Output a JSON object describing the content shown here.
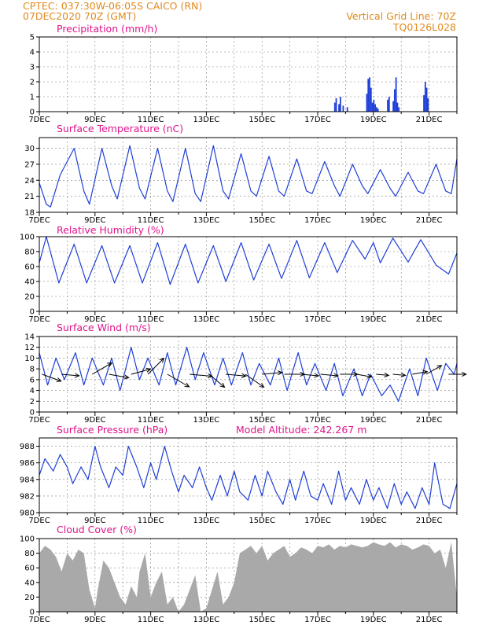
{
  "header": {
    "line1": "CPTEC:   037:30W-06:05S   CAICO (RN)",
    "line2": "07DEC2020 70Z (GMT)",
    "vertical_grid": "Vertical Grid Line: 70Z",
    "code": "TQ0126L028"
  },
  "colors": {
    "header": "#e08a1e",
    "panel_title": "#e0148c",
    "series": "#1f3fd6",
    "cloud": "#a9a9a9",
    "grid": "#808080"
  },
  "chart_data": [
    {
      "type": "bar",
      "title": "Precipitation (mm/h)",
      "ylim": [
        0,
        5
      ],
      "yticks": [
        0,
        1,
        2,
        3,
        4,
        5
      ],
      "xlim": [
        7,
        22
      ],
      "xtick_labels": [
        "7DEC",
        "9DEC",
        "11DEC",
        "13DEC",
        "15DEC",
        "17DEC",
        "19DEC",
        "21DEC"
      ],
      "grid": "dashed",
      "x": [
        17.6,
        17.65,
        17.75,
        17.8,
        17.9,
        18.05,
        18.75,
        18.8,
        18.85,
        18.9,
        18.95,
        19.0,
        19.05,
        19.1,
        19.15,
        19.5,
        19.55,
        19.7,
        19.75,
        19.8,
        19.85,
        19.9,
        20.8,
        20.85,
        20.9,
        20.95
      ],
      "values": [
        0.6,
        0.9,
        0.5,
        1.0,
        0.4,
        0.3,
        1.2,
        2.2,
        2.3,
        1.6,
        0.6,
        0.8,
        0.5,
        0.3,
        0.2,
        0.8,
        1.0,
        0.7,
        1.5,
        2.3,
        0.6,
        0.3,
        1.1,
        2.0,
        1.6,
        0.9
      ]
    },
    {
      "type": "line",
      "title": "Surface Temperature (nC)",
      "ylim": [
        18,
        32
      ],
      "yticks": [
        18,
        21,
        24,
        27,
        30
      ],
      "xlim": [
        7,
        22
      ],
      "xtick_labels": [
        "7DEC",
        "9DEC",
        "11DEC",
        "13DEC",
        "15DEC",
        "17DEC",
        "19DEC",
        "21DEC"
      ],
      "grid": "dashed",
      "series": [
        {
          "x": [
            7.0,
            7.25,
            7.4,
            7.75,
            8.25,
            8.6,
            8.8,
            9.25,
            9.6,
            9.8,
            10.25,
            10.6,
            10.8,
            11.25,
            11.6,
            11.8,
            12.25,
            12.6,
            12.8,
            13.25,
            13.6,
            13.8,
            14.25,
            14.6,
            14.8,
            15.25,
            15.6,
            15.8,
            16.25,
            16.6,
            16.8,
            17.25,
            17.6,
            17.8,
            18.25,
            18.6,
            18.8,
            19.25,
            19.6,
            19.8,
            20.25,
            20.6,
            20.8,
            21.25,
            21.6,
            21.8,
            22.0
          ],
          "values": [
            23.5,
            19.5,
            19.0,
            25.0,
            30.0,
            22.0,
            19.5,
            30.0,
            23.0,
            20.5,
            30.5,
            22.5,
            20.5,
            30.0,
            22.0,
            20.0,
            30.0,
            21.5,
            20.0,
            30.5,
            22.0,
            20.5,
            29.0,
            22.0,
            21.0,
            28.5,
            22.0,
            21.0,
            28.0,
            22.0,
            21.5,
            27.5,
            23.0,
            21.0,
            27.0,
            23.0,
            21.5,
            26.0,
            22.5,
            21.0,
            25.5,
            22.0,
            21.5,
            27.0,
            22.0,
            21.5,
            28.0
          ]
        }
      ]
    },
    {
      "type": "line",
      "title": "Relative Humidity (%)",
      "ylim": [
        0,
        100
      ],
      "yticks": [
        0,
        20,
        40,
        60,
        80,
        100
      ],
      "xlim": [
        7,
        22
      ],
      "xtick_labels": [
        "7DEC",
        "9DEC",
        "11DEC",
        "13DEC",
        "15DEC",
        "17DEC",
        "19DEC",
        "21DEC"
      ],
      "grid": "dashed",
      "series": [
        {
          "x": [
            7.0,
            7.25,
            7.7,
            8.25,
            8.7,
            9.25,
            9.7,
            10.25,
            10.7,
            11.25,
            11.7,
            12.25,
            12.7,
            13.25,
            13.7,
            14.25,
            14.7,
            15.25,
            15.7,
            16.25,
            16.7,
            17.25,
            17.7,
            18.25,
            18.7,
            19.0,
            19.25,
            19.7,
            20.25,
            20.7,
            21.25,
            21.7,
            22.0
          ],
          "values": [
            65,
            100,
            38,
            90,
            38,
            88,
            38,
            88,
            38,
            92,
            36,
            90,
            38,
            88,
            40,
            92,
            42,
            90,
            44,
            95,
            45,
            92,
            52,
            95,
            70,
            92,
            65,
            98,
            66,
            96,
            62,
            50,
            78
          ]
        }
      ]
    },
    {
      "type": "line",
      "title": "Surface Wind (m/s)",
      "ylim": [
        0,
        14
      ],
      "yticks": [
        0,
        2,
        4,
        6,
        8,
        10,
        12,
        14
      ],
      "xlim": [
        7,
        22
      ],
      "xtick_labels": [
        "7DEC",
        "9DEC",
        "11DEC",
        "13DEC",
        "15DEC",
        "17DEC",
        "19DEC",
        "21DEC"
      ],
      "grid": "dashed",
      "series": [
        {
          "x": [
            7.0,
            7.3,
            7.6,
            7.9,
            8.3,
            8.6,
            8.9,
            9.3,
            9.6,
            9.9,
            10.3,
            10.6,
            10.9,
            11.3,
            11.6,
            11.9,
            12.3,
            12.6,
            12.9,
            13.3,
            13.6,
            13.9,
            14.3,
            14.6,
            14.9,
            15.3,
            15.6,
            15.9,
            16.3,
            16.6,
            16.9,
            17.3,
            17.6,
            17.9,
            18.3,
            18.6,
            18.9,
            19.3,
            19.6,
            19.9,
            20.3,
            20.6,
            20.9,
            21.3,
            21.6,
            21.9,
            22.0
          ],
          "values": [
            11,
            5,
            10,
            6,
            11,
            5,
            10,
            5,
            10,
            4,
            12,
            6,
            10,
            5,
            11,
            5,
            12,
            6,
            11,
            5,
            10,
            5,
            11,
            5,
            9,
            5,
            10,
            4,
            11,
            5,
            9,
            4,
            9,
            3,
            8,
            3,
            7,
            3,
            5,
            2,
            8,
            3,
            10,
            4,
            9,
            7,
            9
          ]
        }
      ],
      "vectors": {
        "x": [
          7.1,
          7.8,
          8.9,
          9.5,
          10.3,
          10.9,
          11.6,
          12.4,
          13.1,
          13.7,
          14.4,
          15.0,
          15.8,
          16.4,
          17.1,
          17.8,
          18.4,
          19.1,
          19.7,
          20.4,
          20.9,
          21.7
        ],
        "speed": [
          8,
          7,
          9,
          8,
          8,
          9,
          10,
          9,
          8,
          8,
          9,
          8,
          8,
          7,
          7,
          7,
          6,
          5,
          5,
          6,
          7,
          7
        ],
        "direction_deg": [
          110,
          95,
          60,
          100,
          75,
          45,
          120,
          95,
          130,
          95,
          125,
          85,
          90,
          95,
          95,
          90,
          100,
          95,
          95,
          80,
          60,
          90
        ]
      }
    },
    {
      "type": "line",
      "title": "Surface Pressure (hPa)",
      "annotation": "Model Altitude: 242.267 m",
      "ylim": [
        980,
        989
      ],
      "yticks": [
        980,
        982,
        984,
        986,
        988
      ],
      "xlim": [
        7,
        22
      ],
      "xtick_labels": [
        "7DEC",
        "9DEC",
        "11DEC",
        "13DEC",
        "15DEC",
        "17DEC",
        "19DEC",
        "21DEC"
      ],
      "grid": "dashed",
      "series": [
        {
          "x": [
            7.0,
            7.2,
            7.5,
            7.75,
            8.0,
            8.2,
            8.5,
            8.75,
            9.0,
            9.2,
            9.5,
            9.75,
            10.0,
            10.2,
            10.5,
            10.75,
            11.0,
            11.2,
            11.5,
            11.75,
            12.0,
            12.2,
            12.5,
            12.75,
            13.0,
            13.2,
            13.5,
            13.75,
            14.0,
            14.2,
            14.5,
            14.75,
            15.0,
            15.2,
            15.5,
            15.75,
            16.0,
            16.2,
            16.5,
            16.75,
            17.0,
            17.2,
            17.5,
            17.75,
            18.0,
            18.2,
            18.5,
            18.75,
            19.0,
            19.2,
            19.5,
            19.75,
            20.0,
            20.2,
            20.5,
            20.75,
            21.0,
            21.2,
            21.5,
            21.75,
            22.0
          ],
          "values": [
            984.5,
            986.5,
            985.0,
            987.0,
            985.5,
            983.5,
            985.5,
            984.0,
            988.0,
            985.5,
            983.0,
            985.5,
            984.5,
            988.0,
            985.5,
            983.0,
            986.0,
            984.0,
            988.0,
            985.0,
            982.5,
            984.5,
            983.0,
            985.5,
            983.0,
            981.5,
            984.5,
            982.0,
            985.0,
            982.5,
            981.5,
            984.5,
            982.0,
            985.0,
            982.5,
            981.0,
            984.0,
            981.5,
            985.0,
            982.0,
            981.5,
            983.5,
            981.0,
            985.0,
            981.5,
            983.0,
            981.0,
            984.0,
            981.5,
            983.0,
            980.5,
            983.5,
            981.0,
            982.5,
            980.5,
            983.0,
            981.0,
            986.0,
            981.0,
            980.5,
            983.5
          ]
        }
      ]
    },
    {
      "type": "area",
      "title": "Cloud Cover (%)",
      "ylim": [
        0,
        100
      ],
      "yticks": [
        0,
        20,
        40,
        60,
        80,
        100
      ],
      "xlim": [
        7,
        22
      ],
      "xtick_labels": [
        "7DEC",
        "9DEC",
        "11DEC",
        "13DEC",
        "15DEC",
        "17DEC",
        "19DEC",
        "21DEC"
      ],
      "grid": "dashed",
      "series": [
        {
          "x": [
            7.0,
            7.2,
            7.4,
            7.6,
            7.8,
            8.0,
            8.2,
            8.4,
            8.6,
            8.8,
            9.0,
            9.1,
            9.3,
            9.5,
            9.7,
            9.9,
            10.1,
            10.3,
            10.5,
            10.6,
            10.8,
            11.0,
            11.2,
            11.4,
            11.6,
            11.8,
            12.0,
            12.2,
            12.4,
            12.6,
            12.8,
            13.0,
            13.2,
            13.4,
            13.6,
            13.8,
            14.0,
            14.2,
            14.4,
            14.6,
            14.8,
            15.0,
            15.2,
            15.4,
            15.6,
            15.8,
            16.0,
            16.2,
            16.4,
            16.6,
            16.8,
            17.0,
            17.2,
            17.4,
            17.6,
            17.8,
            18.0,
            18.2,
            18.4,
            18.6,
            18.8,
            19.0,
            19.2,
            19.4,
            19.6,
            19.8,
            20.0,
            20.2,
            20.4,
            20.6,
            20.8,
            21.0,
            21.2,
            21.4,
            21.6,
            21.8,
            22.0
          ],
          "values": [
            80,
            90,
            85,
            75,
            55,
            80,
            70,
            85,
            80,
            30,
            5,
            30,
            70,
            60,
            40,
            20,
            10,
            35,
            20,
            55,
            80,
            20,
            40,
            55,
            10,
            20,
            0,
            10,
            30,
            50,
            0,
            5,
            30,
            55,
            10,
            20,
            40,
            80,
            85,
            90,
            80,
            90,
            70,
            80,
            85,
            90,
            75,
            80,
            88,
            85,
            80,
            90,
            88,
            92,
            85,
            90,
            88,
            92,
            90,
            88,
            90,
            95,
            92,
            90,
            95,
            88,
            92,
            90,
            85,
            88,
            92,
            90,
            80,
            85,
            60,
            95,
            20
          ]
        }
      ]
    }
  ]
}
